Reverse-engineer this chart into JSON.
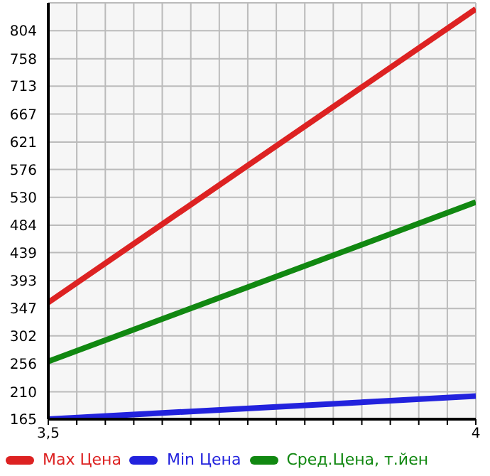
{
  "chart_data": {
    "type": "line",
    "x": [
      3.5,
      4
    ],
    "xlim": [
      3.5,
      4
    ],
    "xticks": [
      {
        "value": 3.5,
        "label": "3,5"
      },
      {
        "value": 3.5333,
        "label": null
      },
      {
        "value": 3.5667,
        "label": null
      },
      {
        "value": 3.6,
        "label": null
      },
      {
        "value": 3.6333,
        "label": null
      },
      {
        "value": 3.6667,
        "label": null
      },
      {
        "value": 3.7,
        "label": null
      },
      {
        "value": 3.7333,
        "label": null
      },
      {
        "value": 3.7667,
        "label": null
      },
      {
        "value": 3.8,
        "label": null
      },
      {
        "value": 3.8333,
        "label": null
      },
      {
        "value": 3.8667,
        "label": null
      },
      {
        "value": 3.9,
        "label": null
      },
      {
        "value": 3.9333,
        "label": null
      },
      {
        "value": 3.9667,
        "label": null
      },
      {
        "value": 4,
        "label": "4"
      }
    ],
    "ylim": [
      165,
      850
    ],
    "yticks": [
      165,
      210,
      256,
      302,
      347,
      393,
      439,
      484,
      530,
      576,
      621,
      667,
      713,
      758,
      804
    ],
    "grid": true,
    "legend": "bottom",
    "marker": "none",
    "series": [
      {
        "name": "Max Цена",
        "color": "#dd2222",
        "values": [
          357,
          840
        ]
      },
      {
        "name": "Min Цена",
        "color": "#2222dd",
        "values": [
          165,
          203
        ]
      },
      {
        "name": "Сред.Цена, т.йен",
        "color": "#118811",
        "values": [
          260,
          522
        ]
      }
    ]
  }
}
